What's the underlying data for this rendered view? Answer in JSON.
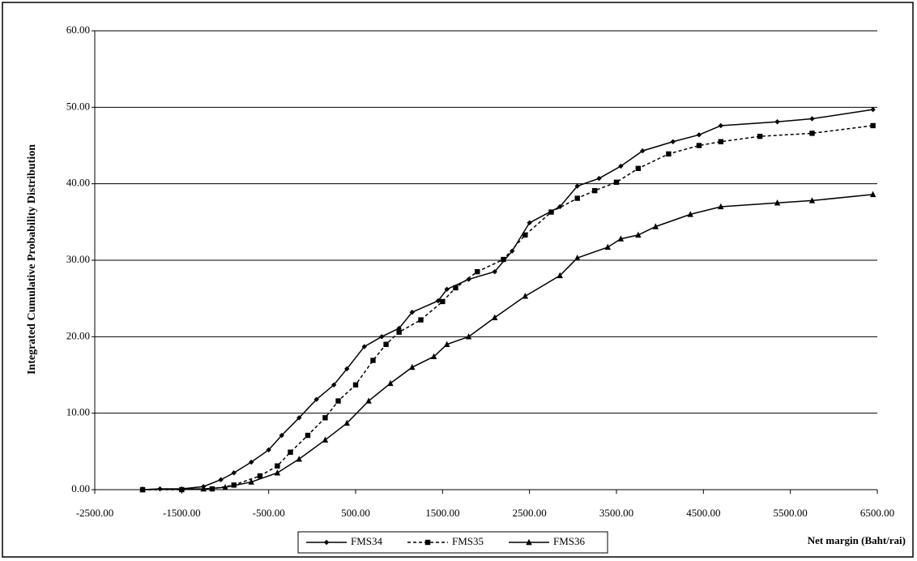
{
  "chart_data": {
    "type": "line",
    "y_label": "Integrated Cumulative Probability Distribution",
    "x_label": "Net margin (Baht/rai)",
    "xlim": [
      -2500,
      6500
    ],
    "xticks": [
      {
        "value": -2500,
        "label": "-2500.00"
      },
      {
        "value": -1500,
        "label": "-1500.00"
      },
      {
        "value": -500,
        "label": "-500.00"
      },
      {
        "value": 500,
        "label": "500.00"
      },
      {
        "value": 1500,
        "label": "1500.00"
      },
      {
        "value": 2500,
        "label": "2500.00"
      },
      {
        "value": 3500,
        "label": "3500.00"
      },
      {
        "value": 4500,
        "label": "4500.00"
      },
      {
        "value": 5500,
        "label": "5500.00"
      },
      {
        "value": 6500,
        "label": "6500.00"
      }
    ],
    "ylim": [
      0,
      60
    ],
    "yticks": [
      {
        "value": 0,
        "label": "0.00"
      },
      {
        "value": 10,
        "label": "10.00"
      },
      {
        "value": 20,
        "label": "20.00"
      },
      {
        "value": 30,
        "label": "30.00"
      },
      {
        "value": 40,
        "label": "40.00"
      },
      {
        "value": 50,
        "label": "50.00"
      },
      {
        "value": 60,
        "label": "60.00"
      }
    ],
    "grid": true,
    "legend": "bottom",
    "series": [
      {
        "name": "FMS34",
        "color": "#000000",
        "marker": "diamond",
        "dash": "solid",
        "x": [
          -1950,
          -1750,
          -1500,
          -1250,
          -1050,
          -900,
          -700,
          -500,
          -350,
          -150,
          50,
          250,
          400,
          600,
          800,
          1000,
          1150,
          1450,
          1550,
          1800,
          2100,
          2300,
          2500,
          2850,
          3050,
          3300,
          3550,
          3800,
          4150,
          4450,
          4700,
          5350,
          5750,
          6450
        ],
        "values": [
          0,
          0.1,
          0.1,
          0.4,
          1.3,
          2.2,
          3.6,
          5.2,
          7.1,
          9.4,
          11.8,
          13.7,
          15.8,
          18.7,
          20,
          21.1,
          23.2,
          24.7,
          26.2,
          27.5,
          28.5,
          31.2,
          34.9,
          37,
          39.7,
          40.7,
          42.3,
          44.3,
          45.5,
          46.4,
          47.6,
          48.1,
          48.5,
          49.7
        ]
      },
      {
        "name": "FMS35",
        "color": "#000000",
        "marker": "square",
        "dash": "dashed",
        "x": [
          -1950,
          -1500,
          -1150,
          -900,
          -600,
          -400,
          -250,
          -50,
          150,
          300,
          500,
          700,
          850,
          1000,
          1250,
          1500,
          1650,
          1900,
          2200,
          2450,
          2750,
          3050,
          3250,
          3500,
          3750,
          4100,
          4450,
          4700,
          5150,
          5750,
          6450
        ],
        "values": [
          0,
          0,
          0.1,
          0.6,
          1.8,
          3.1,
          4.9,
          7.1,
          9.4,
          11.6,
          13.7,
          16.9,
          19,
          20.6,
          22.2,
          24.6,
          26.4,
          28.5,
          30.1,
          33.3,
          36.3,
          38.1,
          39.1,
          40.2,
          42,
          43.9,
          45,
          45.5,
          46.2,
          46.6,
          47.6
        ]
      },
      {
        "name": "FMS36",
        "color": "#000000",
        "marker": "triangle",
        "dash": "solid",
        "x": [
          -1950,
          -1250,
          -1000,
          -700,
          -400,
          -150,
          150,
          400,
          650,
          900,
          1150,
          1400,
          1550,
          1800,
          2100,
          2450,
          2850,
          3050,
          3400,
          3550,
          3750,
          3950,
          4350,
          4700,
          5350,
          5750,
          6450
        ],
        "values": [
          0,
          0.1,
          0.3,
          1,
          2.2,
          4,
          6.5,
          8.7,
          11.6,
          13.9,
          16,
          17.4,
          19,
          20,
          22.5,
          25.3,
          28,
          30.3,
          31.7,
          32.8,
          33.3,
          34.4,
          36,
          37,
          37.5,
          37.8,
          38.6
        ]
      }
    ]
  }
}
